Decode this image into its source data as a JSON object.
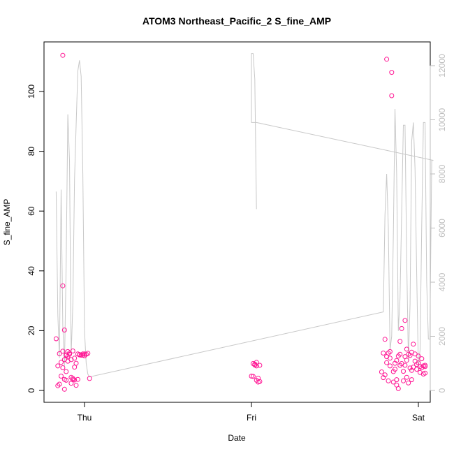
{
  "chart_data": {
    "type": "scatter",
    "title": "ATOM3 Northeast_Pacific_2 S_fine_AMP",
    "xlabel": "Date",
    "ylabel": "S_fine_AMP",
    "x_ticks": [
      {
        "label": "Thu",
        "x": 1.0
      },
      {
        "label": "Fri",
        "x": 2.0
      },
      {
        "label": "Sat",
        "x": 3.0
      }
    ],
    "y_ticks": [
      0,
      20,
      40,
      60,
      80,
      100
    ],
    "ylim": [
      0,
      112
    ],
    "xlim": [
      0.82,
      3.02
    ],
    "y2_ticks": [
      0,
      2000,
      4000,
      6000,
      8000,
      10000,
      12000
    ],
    "y2lim": [
      0,
      12400
    ],
    "colors": {
      "points": "#ff1493",
      "line": "#c8c8c8",
      "right_axis": "#bebebe"
    },
    "series": [
      {
        "type": "scatter",
        "points": [
          [
            0.83,
            17.3
          ],
          [
            0.84,
            8.2
          ],
          [
            0.84,
            1.6
          ],
          [
            0.85,
            12.3
          ],
          [
            0.85,
            2.1
          ],
          [
            0.86,
            9.4
          ],
          [
            0.86,
            4.8
          ],
          [
            0.87,
            112.1
          ],
          [
            0.87,
            7.6
          ],
          [
            0.87,
            35.0
          ],
          [
            0.87,
            13.1
          ],
          [
            0.88,
            10.3
          ],
          [
            0.88,
            20.2
          ],
          [
            0.88,
            3.7
          ],
          [
            0.88,
            0.4
          ],
          [
            0.89,
            6.3
          ],
          [
            0.89,
            11.9
          ],
          [
            0.89,
            3.4
          ],
          [
            0.89,
            11.7
          ],
          [
            0.9,
            13.0
          ],
          [
            0.9,
            9.8
          ],
          [
            0.9,
            11.4
          ],
          [
            0.91,
            12.5
          ],
          [
            0.91,
            12.1
          ],
          [
            0.92,
            10.3
          ],
          [
            0.92,
            4.4
          ],
          [
            0.92,
            2.4
          ],
          [
            0.93,
            13.2
          ],
          [
            0.93,
            4.0
          ],
          [
            0.93,
            3.6
          ],
          [
            0.94,
            10.8
          ],
          [
            0.94,
            3.5
          ],
          [
            0.94,
            7.8
          ],
          [
            0.95,
            1.7
          ],
          [
            0.95,
            9.1
          ],
          [
            0.96,
            12.2
          ],
          [
            0.96,
            3.7
          ],
          [
            0.97,
            11.9
          ],
          [
            0.97,
            12.0
          ],
          [
            0.98,
            11.8
          ],
          [
            0.99,
            12.2
          ],
          [
            0.99,
            11.8
          ],
          [
            1.0,
            11.6
          ],
          [
            1.0,
            12.2
          ],
          [
            1.01,
            12.1
          ],
          [
            1.02,
            12.4
          ],
          [
            1.03,
            4.0
          ],
          [
            2.0,
            4.8
          ],
          [
            2.01,
            4.7
          ],
          [
            2.01,
            9.0
          ],
          [
            2.02,
            8.5
          ],
          [
            2.02,
            8.8
          ],
          [
            2.03,
            9.4
          ],
          [
            2.03,
            8.2
          ],
          [
            2.03,
            3.4
          ],
          [
            2.04,
            4.1
          ],
          [
            2.04,
            2.8
          ],
          [
            2.05,
            3.0
          ],
          [
            2.05,
            8.4
          ],
          [
            2.78,
            6.2
          ],
          [
            2.79,
            4.3
          ],
          [
            2.79,
            12.5
          ],
          [
            2.8,
            17.1
          ],
          [
            2.8,
            5.2
          ],
          [
            2.81,
            110.8
          ],
          [
            2.81,
            9.3
          ],
          [
            2.81,
            11.3
          ],
          [
            2.82,
            3.2
          ],
          [
            2.82,
            12.5
          ],
          [
            2.83,
            8.2
          ],
          [
            2.83,
            10.8
          ],
          [
            2.83,
            13.0
          ],
          [
            2.84,
            98.6
          ],
          [
            2.84,
            106.4
          ],
          [
            2.85,
            2.8
          ],
          [
            2.85,
            6.3
          ],
          [
            2.86,
            7.1
          ],
          [
            2.86,
            9.1
          ],
          [
            2.87,
            1.8
          ],
          [
            2.87,
            10.0
          ],
          [
            2.87,
            3.6
          ],
          [
            2.88,
            11.5
          ],
          [
            2.88,
            0.6
          ],
          [
            2.89,
            8.4
          ],
          [
            2.89,
            12.1
          ],
          [
            2.89,
            16.4
          ],
          [
            2.9,
            20.7
          ],
          [
            2.9,
            9.0
          ],
          [
            2.91,
            3.2
          ],
          [
            2.91,
            6.4
          ],
          [
            2.92,
            8.4
          ],
          [
            2.92,
            11.3
          ],
          [
            2.92,
            23.4
          ],
          [
            2.93,
            10.1
          ],
          [
            2.93,
            13.8
          ],
          [
            2.93,
            4.4
          ],
          [
            2.94,
            2.5
          ],
          [
            2.94,
            12.1
          ],
          [
            2.95,
            7.5
          ],
          [
            2.95,
            11.7
          ],
          [
            2.96,
            12.8
          ],
          [
            2.96,
            6.7
          ],
          [
            2.96,
            3.6
          ],
          [
            2.97,
            15.5
          ],
          [
            2.97,
            7.8
          ],
          [
            2.98,
            12.2
          ],
          [
            2.98,
            9.8
          ],
          [
            2.99,
            8.7
          ],
          [
            2.99,
            7.1
          ],
          [
            3.0,
            9.2
          ],
          [
            3.0,
            11.5
          ],
          [
            3.01,
            6.0
          ],
          [
            3.01,
            8.0
          ],
          [
            3.02,
            7.6
          ],
          [
            3.02,
            10.6
          ],
          [
            3.03,
            8.2
          ],
          [
            3.03,
            5.5
          ],
          [
            3.04,
            8.4
          ],
          [
            3.04,
            5.8
          ],
          [
            3.04,
            8.0
          ]
        ]
      },
      {
        "type": "line",
        "axis": "right",
        "points": [
          [
            0.83,
            7350
          ],
          [
            0.84,
            2800
          ],
          [
            0.85,
            1200
          ],
          [
            0.86,
            7420
          ],
          [
            0.87,
            2400
          ],
          [
            0.88,
            900
          ],
          [
            0.89,
            4600
          ],
          [
            0.9,
            10200
          ],
          [
            0.91,
            8500
          ],
          [
            0.92,
            1300
          ],
          [
            0.93,
            3200
          ],
          [
            0.94,
            7800
          ],
          [
            0.95,
            9800
          ],
          [
            0.96,
            11800
          ],
          [
            0.97,
            12200
          ],
          [
            0.98,
            11600
          ],
          [
            0.99,
            8000
          ],
          [
            1.0,
            2200
          ],
          [
            1.01,
            1000
          ],
          [
            1.02,
            600
          ],
          [
            1.03,
            500
          ],
          [
            2.79,
            2900
          ],
          [
            2.8,
            6500
          ],
          [
            2.81,
            8000
          ],
          [
            2.82,
            6000
          ],
          [
            2.83,
            1500
          ],
          [
            2.84,
            2000
          ],
          [
            2.85,
            5800
          ],
          [
            2.86,
            10400
          ],
          [
            2.87,
            8000
          ],
          [
            2.88,
            2200
          ],
          [
            2.89,
            3400
          ],
          [
            2.9,
            6600
          ],
          [
            2.91,
            9800
          ],
          [
            2.92,
            9800
          ],
          [
            2.93,
            4800
          ],
          [
            2.94,
            1100
          ],
          [
            2.95,
            3200
          ],
          [
            2.96,
            9200
          ],
          [
            2.97,
            9900
          ],
          [
            2.98,
            8200
          ],
          [
            2.99,
            4300
          ],
          [
            3.0,
            800
          ],
          [
            3.01,
            1500
          ],
          [
            3.02,
            6100
          ],
          [
            3.03,
            9900
          ],
          [
            3.04,
            9900
          ],
          [
            3.05,
            4000
          ],
          [
            3.06,
            1900
          ],
          [
            3.07,
            1900
          ],
          [
            3.07,
            2600
          ],
          [
            3.08,
            8500
          ],
          [
            3.09,
            8500
          ],
          [
            2.03,
            9900
          ],
          [
            2.0,
            9900
          ],
          [
            2.0,
            12450
          ],
          [
            2.01,
            12450
          ],
          [
            2.02,
            11500
          ],
          [
            2.03,
            6700
          ]
        ]
      }
    ]
  }
}
